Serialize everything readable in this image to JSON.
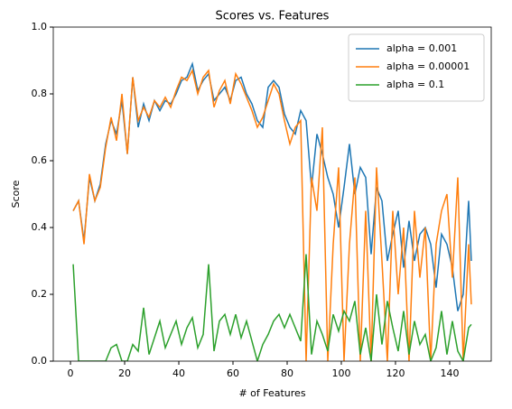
{
  "chart_data": {
    "type": "line",
    "title": "Scores vs. Features",
    "xlabel": "# of Features",
    "ylabel": "Score",
    "x": [
      1,
      3,
      5,
      7,
      9,
      11,
      13,
      15,
      17,
      19,
      21,
      23,
      25,
      27,
      29,
      31,
      33,
      35,
      37,
      39,
      41,
      43,
      45,
      47,
      49,
      51,
      53,
      55,
      57,
      59,
      61,
      63,
      65,
      67,
      69,
      71,
      73,
      75,
      77,
      79,
      81,
      83,
      85,
      87,
      89,
      91,
      93,
      95,
      97,
      99,
      101,
      103,
      105,
      107,
      109,
      111,
      113,
      115,
      117,
      119,
      121,
      123,
      125,
      127,
      129,
      131,
      133,
      135,
      137,
      139,
      141,
      143,
      145,
      147,
      148
    ],
    "series": [
      {
        "name": "alpha = 0.001",
        "color": "#1f77b4",
        "values": [
          0.45,
          0.48,
          0.36,
          0.55,
          0.48,
          0.53,
          0.65,
          0.72,
          0.68,
          0.78,
          0.62,
          0.85,
          0.7,
          0.77,
          0.72,
          0.78,
          0.75,
          0.78,
          0.77,
          0.8,
          0.84,
          0.85,
          0.89,
          0.81,
          0.84,
          0.86,
          0.78,
          0.8,
          0.82,
          0.78,
          0.84,
          0.85,
          0.8,
          0.77,
          0.72,
          0.7,
          0.82,
          0.84,
          0.82,
          0.74,
          0.7,
          0.68,
          0.75,
          0.72,
          0.52,
          0.68,
          0.62,
          0.55,
          0.5,
          0.4,
          0.52,
          0.65,
          0.5,
          0.58,
          0.55,
          0.32,
          0.52,
          0.48,
          0.3,
          0.38,
          0.45,
          0.28,
          0.42,
          0.3,
          0.38,
          0.4,
          0.35,
          0.22,
          0.38,
          0.35,
          0.28,
          0.15,
          0.2,
          0.48,
          0.3
        ]
      },
      {
        "name": "alpha = 0.00001",
        "color": "#ff7f0e",
        "values": [
          0.45,
          0.48,
          0.35,
          0.56,
          0.48,
          0.52,
          0.64,
          0.73,
          0.66,
          0.8,
          0.62,
          0.85,
          0.72,
          0.76,
          0.73,
          0.78,
          0.76,
          0.79,
          0.76,
          0.81,
          0.85,
          0.84,
          0.87,
          0.8,
          0.85,
          0.87,
          0.76,
          0.81,
          0.84,
          0.77,
          0.86,
          0.83,
          0.79,
          0.75,
          0.7,
          0.73,
          0.78,
          0.83,
          0.8,
          0.72,
          0.65,
          0.7,
          0.72,
          0.0,
          0.55,
          0.45,
          0.7,
          0.0,
          0.35,
          0.58,
          0.0,
          0.35,
          0.55,
          0.0,
          0.45,
          0.0,
          0.58,
          0.3,
          0.0,
          0.45,
          0.2,
          0.4,
          0.0,
          0.45,
          0.25,
          0.4,
          0.0,
          0.35,
          0.45,
          0.5,
          0.25,
          0.55,
          0.0,
          0.35,
          0.17
        ]
      },
      {
        "name": "alpha = 0.1",
        "color": "#2ca02c",
        "values": [
          0.29,
          0.0,
          0.0,
          0.0,
          0.0,
          0.0,
          0.0,
          0.04,
          0.05,
          0.0,
          0.0,
          0.05,
          0.03,
          0.16,
          0.02,
          0.07,
          0.12,
          0.04,
          0.08,
          0.12,
          0.05,
          0.1,
          0.13,
          0.04,
          0.08,
          0.29,
          0.03,
          0.12,
          0.14,
          0.08,
          0.14,
          0.07,
          0.12,
          0.06,
          0.0,
          0.05,
          0.08,
          0.12,
          0.14,
          0.1,
          0.14,
          0.1,
          0.06,
          0.32,
          0.02,
          0.12,
          0.08,
          0.03,
          0.14,
          0.09,
          0.15,
          0.12,
          0.18,
          0.02,
          0.1,
          0.0,
          0.2,
          0.05,
          0.18,
          0.1,
          0.03,
          0.15,
          0.02,
          0.12,
          0.05,
          0.08,
          0.0,
          0.04,
          0.15,
          0.02,
          0.12,
          0.03,
          0.0,
          0.1,
          0.11
        ]
      }
    ],
    "xlim": [
      -6.35,
      155.35
    ],
    "ylim": [
      0,
      1
    ],
    "xticks": [
      0,
      20,
      40,
      60,
      80,
      100,
      120,
      140
    ],
    "yticks": [
      {
        "value": 0,
        "label": "0.0"
      },
      0.2,
      0.4,
      0.6,
      0.8,
      {
        "value": 1,
        "label": "1.0"
      }
    ],
    "grid": false,
    "legend": "upper right"
  }
}
